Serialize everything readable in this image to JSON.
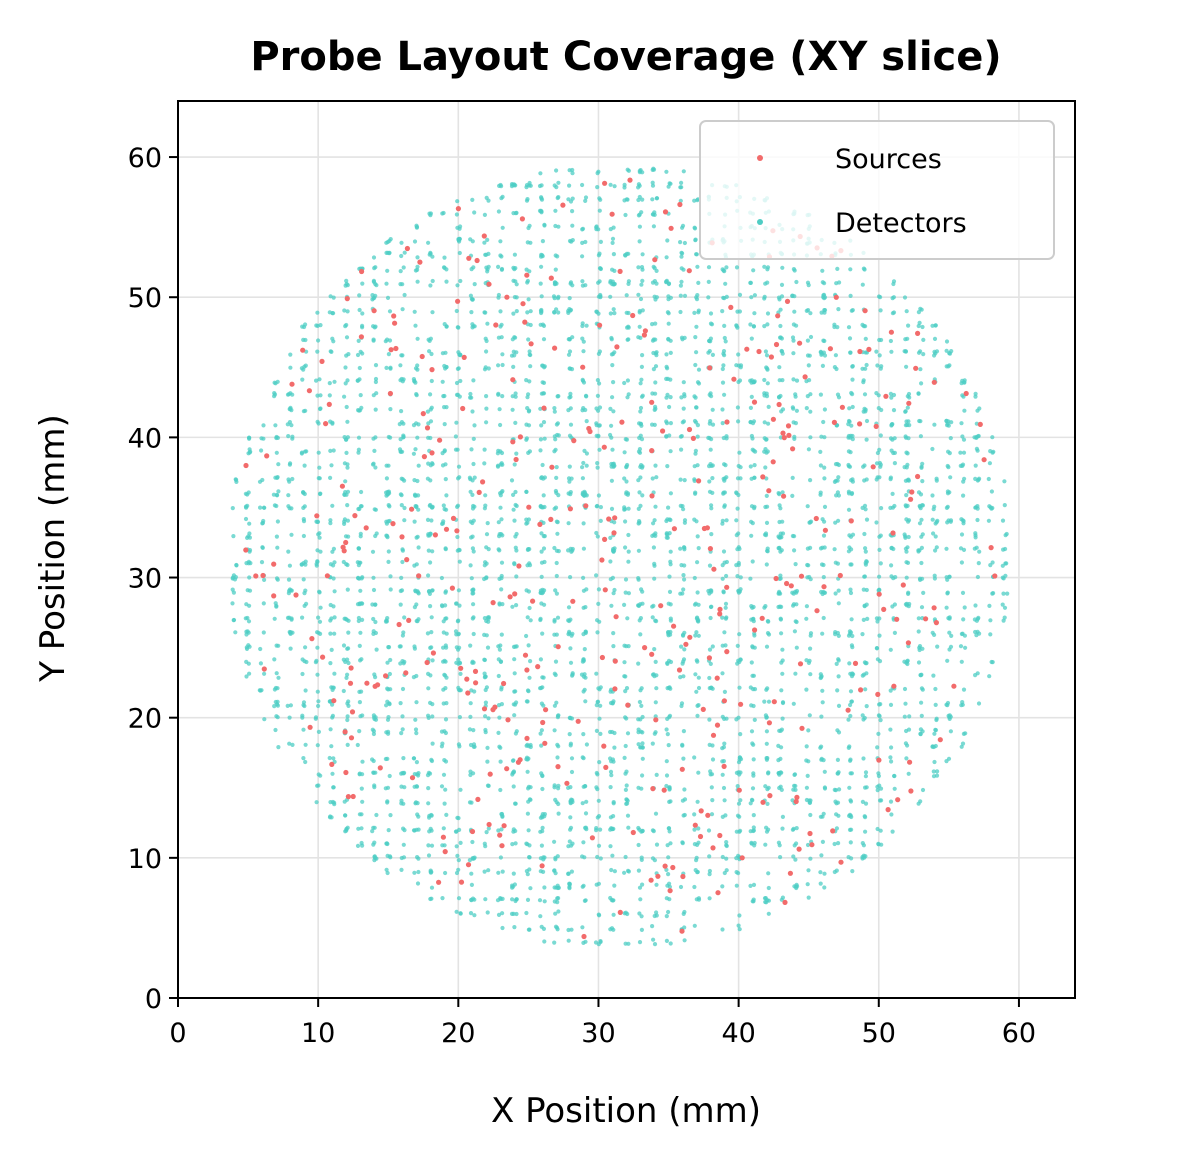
{
  "chart_data": {
    "type": "scatter",
    "title": "Probe Layout Coverage (XY slice)",
    "xlabel": "X Position (mm)",
    "ylabel": "Y Position (mm)",
    "xlim": [
      0,
      64
    ],
    "ylim": [
      0,
      64
    ],
    "xticks": [
      "0",
      "10",
      "20",
      "30",
      "40",
      "50",
      "60"
    ],
    "yticks": [
      "0",
      "10",
      "20",
      "30",
      "40",
      "50",
      "60"
    ],
    "grid": true,
    "legend_position": "top-right",
    "footprint": {
      "center": [
        31.5,
        31.5
      ],
      "radius": 28
    },
    "series": [
      {
        "name": "Sources",
        "color": "#f26b6b",
        "count": 340
      },
      {
        "name": "Detectors",
        "color": "#4ecdc4",
        "count": 4200
      }
    ]
  }
}
